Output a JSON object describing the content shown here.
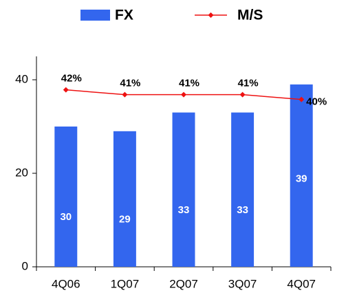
{
  "chart_data": {
    "type": "bar",
    "categories": [
      "4Q06",
      "1Q07",
      "2Q07",
      "3Q07",
      "4Q07"
    ],
    "series": [
      {
        "name": "FX",
        "type": "bar",
        "color": "#3366ee",
        "values": [
          30,
          29,
          33,
          33,
          39
        ]
      },
      {
        "name": "M/S",
        "type": "line",
        "axis": "y2",
        "color": "#ee1111",
        "values": [
          42,
          41,
          41,
          41,
          40
        ],
        "value_labels": [
          "42%",
          "41%",
          "41%",
          "41%",
          "40%"
        ]
      }
    ],
    "ylim": [
      0,
      45
    ],
    "yticks": [
      0,
      20,
      40
    ],
    "y2lim": [
      5,
      49
    ],
    "legend": "top"
  }
}
